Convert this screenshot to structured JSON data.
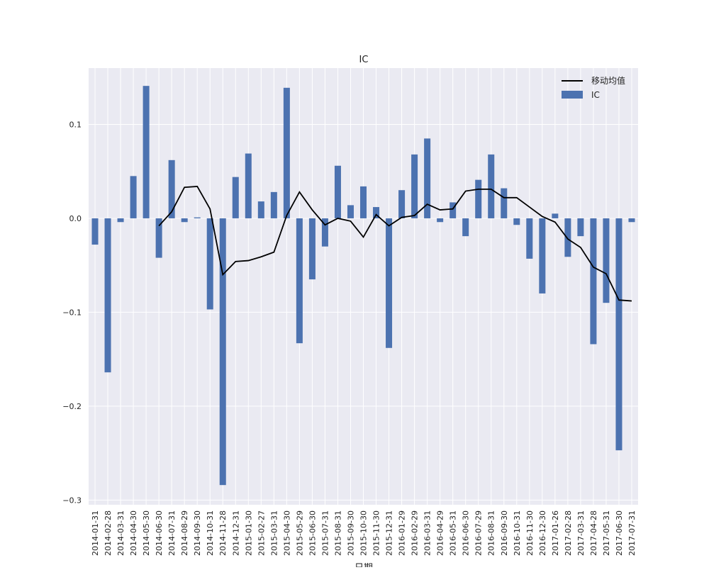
{
  "chart_data": {
    "type": "bar",
    "title": "IC",
    "xlabel": "日期",
    "ylabel": "",
    "ylim": [
      -0.305,
      0.16
    ],
    "yticks": [
      -0.3,
      -0.2,
      -0.1,
      0.0,
      0.1
    ],
    "ytick_labels": [
      "−0.3",
      "−0.2",
      "−0.1",
      "0.0",
      "0.1"
    ],
    "grid": true,
    "legend_position": "top-right",
    "categories": [
      "2014-01-31",
      "2014-02-28",
      "2014-03-31",
      "2014-04-30",
      "2014-05-30",
      "2014-06-30",
      "2014-07-31",
      "2014-08-29",
      "2014-09-30",
      "2014-10-31",
      "2014-11-28",
      "2014-12-31",
      "2015-01-30",
      "2015-02-27",
      "2015-03-31",
      "2015-04-30",
      "2015-05-29",
      "2015-06-30",
      "2015-07-31",
      "2015-08-31",
      "2015-09-30",
      "2015-10-30",
      "2015-11-30",
      "2015-12-31",
      "2016-01-29",
      "2016-02-29",
      "2016-03-31",
      "2016-04-29",
      "2016-05-31",
      "2016-06-30",
      "2016-07-29",
      "2016-08-31",
      "2016-09-30",
      "2016-10-31",
      "2016-11-30",
      "2016-12-30",
      "2017-01-26",
      "2017-02-28",
      "2017-03-31",
      "2017-04-28",
      "2017-05-31",
      "2017-06-30",
      "2017-07-31"
    ],
    "series": [
      {
        "name": "IC",
        "kind": "bar",
        "color": "#4c72b0",
        "values": [
          -0.028,
          -0.164,
          -0.004,
          0.045,
          0.141,
          -0.042,
          0.062,
          -0.004,
          0.001,
          -0.097,
          -0.284,
          0.044,
          0.069,
          0.018,
          0.028,
          0.139,
          -0.133,
          -0.065,
          -0.03,
          0.056,
          0.014,
          0.034,
          0.012,
          -0.138,
          0.03,
          0.068,
          0.085,
          -0.004,
          0.017,
          -0.019,
          0.041,
          0.068,
          0.032,
          -0.007,
          -0.043,
          -0.08,
          0.005,
          -0.041,
          -0.019,
          -0.134,
          -0.09,
          -0.247,
          -0.004
        ]
      },
      {
        "name": "移动均值",
        "kind": "line",
        "color": "#000000",
        "values": [
          null,
          null,
          null,
          null,
          null,
          -0.008,
          0.007,
          0.033,
          0.034,
          0.01,
          -0.06,
          -0.046,
          -0.045,
          -0.041,
          -0.036,
          0.003,
          0.028,
          0.009,
          -0.007,
          0.0,
          -0.003,
          -0.02,
          0.004,
          -0.008,
          0.001,
          0.003,
          0.015,
          0.009,
          0.01,
          0.029,
          0.031,
          0.031,
          0.022,
          0.022,
          0.012,
          0.002,
          -0.004,
          -0.022,
          -0.031,
          -0.052,
          -0.059,
          -0.087,
          -0.088
        ]
      }
    ]
  }
}
